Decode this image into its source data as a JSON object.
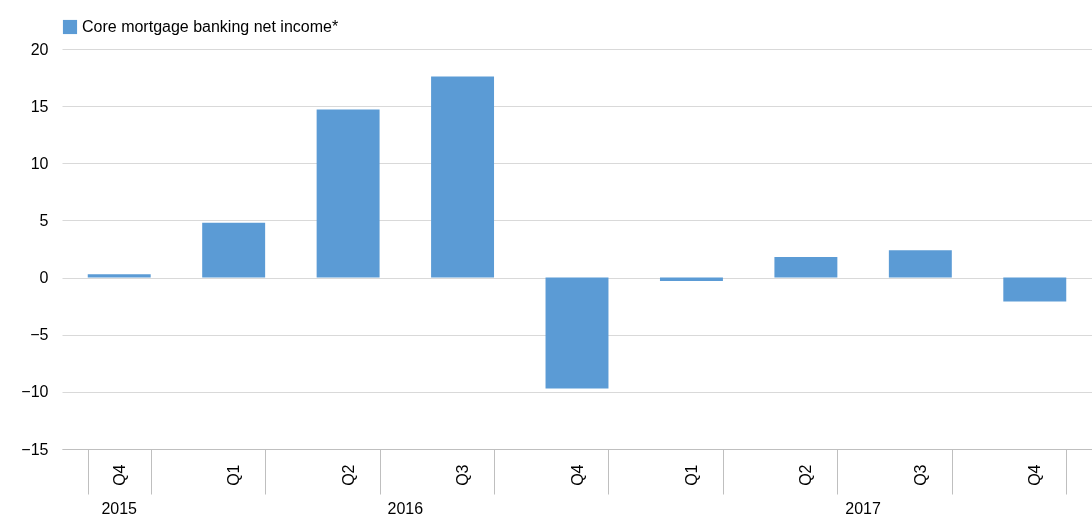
{
  "chart_data": {
    "type": "bar",
    "categories": [
      "Q4",
      "Q1",
      "Q2",
      "Q3",
      "Q4",
      "Q1",
      "Q2",
      "Q3",
      "Q4"
    ],
    "series": [
      {
        "name": "Core mortgage banking net income*",
        "color": "#5b9bd5",
        "values": [
          0.3,
          4.8,
          14.7,
          17.6,
          -9.7,
          -0.3,
          1.8,
          2.4,
          -2.1
        ]
      }
    ],
    "annotations": [
      "2015",
      "2016",
      "2017"
    ],
    "ylim": [
      -15,
      20
    ],
    "yticks": [
      -15,
      -10,
      -5,
      0,
      5,
      10,
      15,
      20
    ],
    "grid": "y",
    "legend": "top"
  }
}
